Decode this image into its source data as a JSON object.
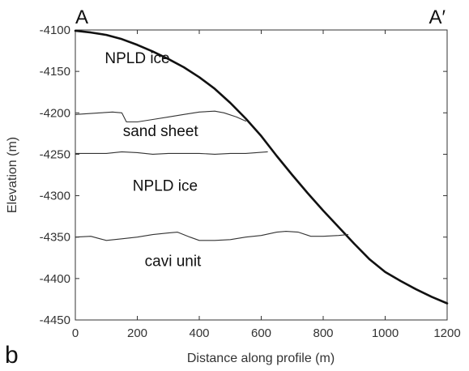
{
  "chart_data": {
    "type": "line",
    "panel_label": "b",
    "profile_start_label": "A",
    "profile_end_label": "A′",
    "xlabel": "Distance along profile (m)",
    "ylabel": "Elevation (m)",
    "xlim": [
      0,
      1200
    ],
    "ylim": [
      -4450,
      -4100
    ],
    "x_ticks": [
      0,
      200,
      400,
      600,
      800,
      1000,
      1200
    ],
    "y_ticks": [
      -4100,
      -4150,
      -4200,
      -4250,
      -4300,
      -4350,
      -4400,
      -4450
    ],
    "grid": false,
    "series": [
      {
        "points": [
          [
            0,
            -4101
          ],
          [
            50,
            -4103
          ],
          [
            100,
            -4106
          ],
          [
            150,
            -4111
          ],
          [
            200,
            -4118
          ],
          [
            250,
            -4126
          ],
          [
            300,
            -4135
          ],
          [
            350,
            -4145
          ],
          [
            400,
            -4157
          ],
          [
            450,
            -4171
          ],
          [
            500,
            -4188
          ],
          [
            550,
            -4207
          ],
          [
            600,
            -4228
          ],
          [
            650,
            -4252
          ],
          [
            700,
            -4275
          ],
          [
            750,
            -4297
          ],
          [
            800,
            -4318
          ],
          [
            850,
            -4338
          ],
          [
            900,
            -4358
          ],
          [
            950,
            -4377
          ],
          [
            1000,
            -4392
          ],
          [
            1050,
            -4403
          ],
          [
            1100,
            -4413
          ],
          [
            1150,
            -4422
          ],
          [
            1200,
            -4430
          ]
        ],
        "color": "#111111",
        "style": "thick"
      },
      {
        "points": [
          [
            0,
            -4202
          ],
          [
            40,
            -4201
          ],
          [
            80,
            -4200
          ],
          [
            120,
            -4199
          ],
          [
            150,
            -4200
          ],
          [
            165,
            -4211
          ],
          [
            200,
            -4211
          ],
          [
            250,
            -4208
          ],
          [
            300,
            -4205
          ],
          [
            350,
            -4202
          ],
          [
            400,
            -4199
          ],
          [
            450,
            -4198
          ],
          [
            480,
            -4200
          ],
          [
            520,
            -4205
          ],
          [
            550,
            -4210
          ]
        ],
        "color": "#333333",
        "style": "thin"
      },
      {
        "points": [
          [
            0,
            -4249
          ],
          [
            50,
            -4249
          ],
          [
            100,
            -4249
          ],
          [
            150,
            -4247
          ],
          [
            200,
            -4248
          ],
          [
            250,
            -4250
          ],
          [
            300,
            -4249
          ],
          [
            350,
            -4249
          ],
          [
            400,
            -4249
          ],
          [
            450,
            -4250
          ],
          [
            500,
            -4249
          ],
          [
            550,
            -4249
          ],
          [
            620,
            -4247
          ]
        ],
        "color": "#333333",
        "style": "thin"
      },
      {
        "points": [
          [
            0,
            -4350
          ],
          [
            50,
            -4349
          ],
          [
            80,
            -4352
          ],
          [
            100,
            -4354
          ],
          [
            150,
            -4352
          ],
          [
            200,
            -4350
          ],
          [
            250,
            -4347
          ],
          [
            300,
            -4345
          ],
          [
            330,
            -4344
          ],
          [
            370,
            -4350
          ],
          [
            400,
            -4354
          ],
          [
            450,
            -4354
          ],
          [
            500,
            -4353
          ],
          [
            550,
            -4350
          ],
          [
            600,
            -4348
          ],
          [
            650,
            -4344
          ],
          [
            680,
            -4343
          ],
          [
            720,
            -4344
          ],
          [
            760,
            -4349
          ],
          [
            800,
            -4349
          ],
          [
            850,
            -4348
          ],
          [
            880,
            -4347
          ]
        ],
        "color": "#333333",
        "style": "thin"
      }
    ],
    "annotations": [
      {
        "text": "NPLD ice",
        "x": 200,
        "y": -4140
      },
      {
        "text": "sand sheet",
        "x": 275,
        "y": -4228
      },
      {
        "text": "NPLD ice",
        "x": 290,
        "y": -4294
      },
      {
        "text": "cavi unit",
        "x": 315,
        "y": -4385
      }
    ]
  }
}
